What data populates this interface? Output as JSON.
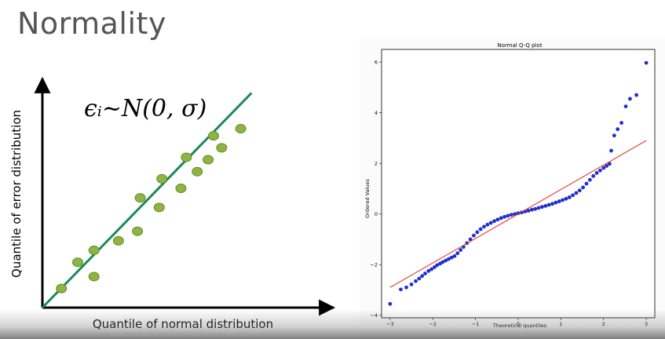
{
  "slide": {
    "title": "Normality"
  },
  "colors": {
    "title": "#555555",
    "fit_line_left": "#1a8a5a",
    "dot_fill_left": "#8db542",
    "dot_stroke_left": "#6a8a2a",
    "qq_points": "#1f2fd0",
    "qq_line": "#e03b2b"
  },
  "chart_data": [
    {
      "type": "scatter",
      "title": "",
      "formula": "ϵᵢ~N(0, σ)",
      "xlabel": "Quantile of normal distribution",
      "ylabel": "Quantile of error distribution",
      "xlim": [
        0,
        10
      ],
      "ylim": [
        0,
        10
      ],
      "ticks": false,
      "fit_line": [
        [
          0,
          0
        ],
        [
          7.7,
          9
        ]
      ],
      "points": [
        [
          0.7,
          0.8
        ],
        [
          1.3,
          1.9
        ],
        [
          1.9,
          1.3
        ],
        [
          1.9,
          2.4
        ],
        [
          2.8,
          2.8
        ],
        [
          3.5,
          3.2
        ],
        [
          3.6,
          4.6
        ],
        [
          4.3,
          4.2
        ],
        [
          4.4,
          5.4
        ],
        [
          5.1,
          5.0
        ],
        [
          5.3,
          6.3
        ],
        [
          5.7,
          5.7
        ],
        [
          6.1,
          6.2
        ],
        [
          6.3,
          7.2
        ],
        [
          6.6,
          6.7
        ],
        [
          7.3,
          7.5
        ]
      ]
    },
    {
      "type": "scatter",
      "title": "Normal Q-Q plot",
      "xlabel": "Theoretical quantiles",
      "ylabel": "Ordered Values",
      "xlim": [
        -3.2,
        3.2
      ],
      "ylim": [
        -4.1,
        6.5
      ],
      "xticks": [
        -3,
        -2,
        -1,
        0,
        1,
        2,
        3
      ],
      "yticks": [
        -4,
        -2,
        0,
        2,
        4,
        6
      ],
      "fit_line": [
        [
          -3.0,
          -2.9
        ],
        [
          3.0,
          2.9
        ]
      ],
      "points": [
        [
          -3.0,
          -3.55
        ],
        [
          -2.75,
          -2.98
        ],
        [
          -2.62,
          -2.9
        ],
        [
          -2.5,
          -2.78
        ],
        [
          -2.4,
          -2.65
        ],
        [
          -2.32,
          -2.55
        ],
        [
          -2.25,
          -2.45
        ],
        [
          -2.18,
          -2.35
        ],
        [
          -2.1,
          -2.25
        ],
        [
          -2.03,
          -2.18
        ],
        [
          -1.96,
          -2.1
        ],
        [
          -1.9,
          -2.02
        ],
        [
          -1.83,
          -1.96
        ],
        [
          -1.77,
          -1.9
        ],
        [
          -1.7,
          -1.84
        ],
        [
          -1.63,
          -1.78
        ],
        [
          -1.56,
          -1.72
        ],
        [
          -1.49,
          -1.66
        ],
        [
          -1.42,
          -1.55
        ],
        [
          -1.35,
          -1.42
        ],
        [
          -1.28,
          -1.3
        ],
        [
          -1.2,
          -1.15
        ],
        [
          -1.12,
          -1.0
        ],
        [
          -1.04,
          -0.85
        ],
        [
          -0.96,
          -0.72
        ],
        [
          -0.88,
          -0.6
        ],
        [
          -0.8,
          -0.5
        ],
        [
          -0.72,
          -0.42
        ],
        [
          -0.64,
          -0.35
        ],
        [
          -0.56,
          -0.28
        ],
        [
          -0.48,
          -0.22
        ],
        [
          -0.4,
          -0.16
        ],
        [
          -0.32,
          -0.11
        ],
        [
          -0.24,
          -0.07
        ],
        [
          -0.16,
          -0.03
        ],
        [
          -0.08,
          0.0
        ],
        [
          0.0,
          0.03
        ],
        [
          0.08,
          0.06
        ],
        [
          0.16,
          0.1
        ],
        [
          0.24,
          0.13
        ],
        [
          0.32,
          0.17
        ],
        [
          0.4,
          0.2
        ],
        [
          0.48,
          0.24
        ],
        [
          0.56,
          0.28
        ],
        [
          0.64,
          0.32
        ],
        [
          0.72,
          0.36
        ],
        [
          0.8,
          0.4
        ],
        [
          0.88,
          0.45
        ],
        [
          0.96,
          0.5
        ],
        [
          1.04,
          0.55
        ],
        [
          1.12,
          0.6
        ],
        [
          1.2,
          0.66
        ],
        [
          1.28,
          0.74
        ],
        [
          1.36,
          0.83
        ],
        [
          1.44,
          0.93
        ],
        [
          1.52,
          1.05
        ],
        [
          1.6,
          1.2
        ],
        [
          1.68,
          1.35
        ],
        [
          1.76,
          1.5
        ],
        [
          1.84,
          1.62
        ],
        [
          1.92,
          1.72
        ],
        [
          2.0,
          1.82
        ],
        [
          2.07,
          1.9
        ],
        [
          2.14,
          1.98
        ],
        [
          2.18,
          2.5
        ],
        [
          2.25,
          3.1
        ],
        [
          2.33,
          3.35
        ],
        [
          2.42,
          3.6
        ],
        [
          2.52,
          4.25
        ],
        [
          2.62,
          4.55
        ],
        [
          2.77,
          4.7
        ],
        [
          3.0,
          5.97
        ]
      ]
    }
  ]
}
